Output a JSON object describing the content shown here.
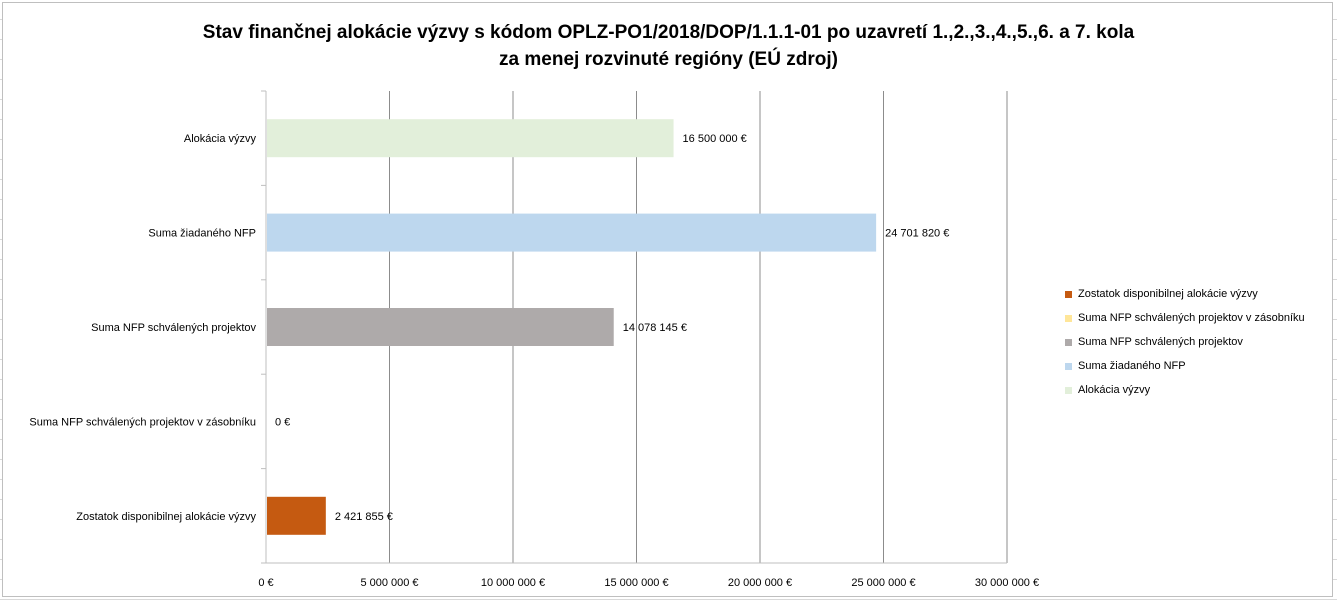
{
  "chart_data": {
    "type": "bar",
    "orientation": "horizontal",
    "title": "Stav finančnej alokácie výzvy s kódom OPLZ-PO1/2018/DOP/1.1.1-01 po uzavretí 1.,2.,3.,4.,5.,6. a 7. kola",
    "subtitle": "za menej rozvinuté regióny  (EÚ zdroj)",
    "categories": [
      "Alokácia výzvy",
      "Suma žiadaného NFP",
      "Suma NFP schválených projektov",
      "Suma NFP schválených projektov v zásobníku",
      "Zostatok disponibilnej alokácie výzvy"
    ],
    "values": [
      16500000,
      24701820,
      14078145,
      0,
      2421855
    ],
    "data_labels": [
      "16 500 000 €",
      "24 701 820 €",
      "14 078 145 €",
      "0 €",
      "2 421 855 €"
    ],
    "colors": [
      "#e2efda",
      "#bdd7ee",
      "#aeaaaa",
      "#ffe699",
      "#c55a11"
    ],
    "xlim": [
      0,
      30000000
    ],
    "x_ticks": [
      0,
      5000000,
      10000000,
      15000000,
      20000000,
      25000000,
      30000000
    ],
    "x_tick_labels": [
      "0 €",
      "5 000 000 €",
      "10 000 000 €",
      "15 000 000 €",
      "20 000 000 €",
      "25 000 000 €",
      "30 000 000 €"
    ],
    "grid": true,
    "legend_position": "right",
    "legend": [
      "Zostatok disponibilnej alokácie výzvy",
      "Suma NFP schválených projektov v zásobníku",
      "Suma NFP schválených projektov",
      "Suma žiadaného NFP",
      "Alokácia výzvy"
    ],
    "legend_colors": [
      "#c55a11",
      "#ffe699",
      "#aeaaaa",
      "#bdd7ee",
      "#e2efda"
    ]
  }
}
